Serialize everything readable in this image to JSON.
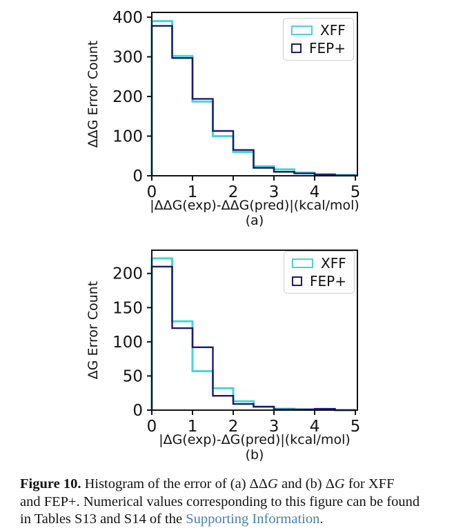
{
  "page": {
    "background": "#ffffff"
  },
  "colors": {
    "xff": "#45d6d0",
    "fep": "#1a1a70",
    "axis": "#121212",
    "legend_border": "#cccccc",
    "link": "#4a7fae",
    "text": "#121212"
  },
  "chart_data": [
    {
      "type": "bar",
      "subtype": "step-histogram-outline",
      "panel": "(a)",
      "xlabel": "|ΔΔG(exp)-ΔΔG(pred)|(kcal/mol)",
      "ylabel": "ΔΔG Error Count",
      "bin_width": 0.5,
      "bin_edges": [
        0,
        0.5,
        1,
        1.5,
        2,
        2.5,
        3,
        3.5,
        4,
        4.5,
        5
      ],
      "xlim": [
        0,
        5.05
      ],
      "ylim": [
        0,
        412
      ],
      "xticks": [
        0,
        1,
        2,
        3,
        4,
        5
      ],
      "yticks": [
        0,
        100,
        200,
        300,
        400
      ],
      "grid": false,
      "legend_position": "upper right",
      "series": [
        {
          "name": "XFF",
          "color": "#45d6d0",
          "values": [
            390,
            302,
            187,
            100,
            60,
            24,
            16,
            8,
            4,
            2
          ]
        },
        {
          "name": "FEP+",
          "color": "#1a1a70",
          "values": [
            378,
            297,
            194,
            113,
            65,
            20,
            10,
            6,
            3,
            1
          ]
        }
      ]
    },
    {
      "type": "bar",
      "subtype": "step-histogram-outline",
      "panel": "(b)",
      "xlabel": "|ΔG(exp)-ΔG(pred)|(kcal/mol)",
      "ylabel": "ΔG Error Count",
      "bin_width": 0.5,
      "bin_edges": [
        0,
        0.5,
        1,
        1.5,
        2,
        2.5,
        3,
        3.5,
        4,
        4.5,
        5
      ],
      "xlim": [
        0,
        5.05
      ],
      "ylim": [
        0,
        234
      ],
      "xticks": [
        0,
        1,
        2,
        3,
        4,
        5
      ],
      "yticks": [
        0,
        50,
        100,
        150,
        200
      ],
      "grid": false,
      "legend_position": "upper right",
      "series": [
        {
          "name": "XFF",
          "color": "#45d6d0",
          "values": [
            222,
            130,
            57,
            32,
            13,
            5,
            2,
            1,
            1,
            0
          ]
        },
        {
          "name": "FEP+",
          "color": "#1a1a70",
          "values": [
            210,
            120,
            92,
            21,
            9,
            5,
            1,
            1,
            2,
            0
          ]
        }
      ]
    }
  ],
  "caption": {
    "label": "Figure 10.",
    "p1": " Histogram of the error of (a) ΔΔ",
    "g1": "G",
    "p2": " and (b) Δ",
    "g2": "G",
    "p3": " for XFF",
    "p4": "and FEP+. Numerical values corresponding to this figure can be found",
    "p5": "in Tables S13 and S14 of the ",
    "link": "Supporting Information",
    "p6": "."
  }
}
